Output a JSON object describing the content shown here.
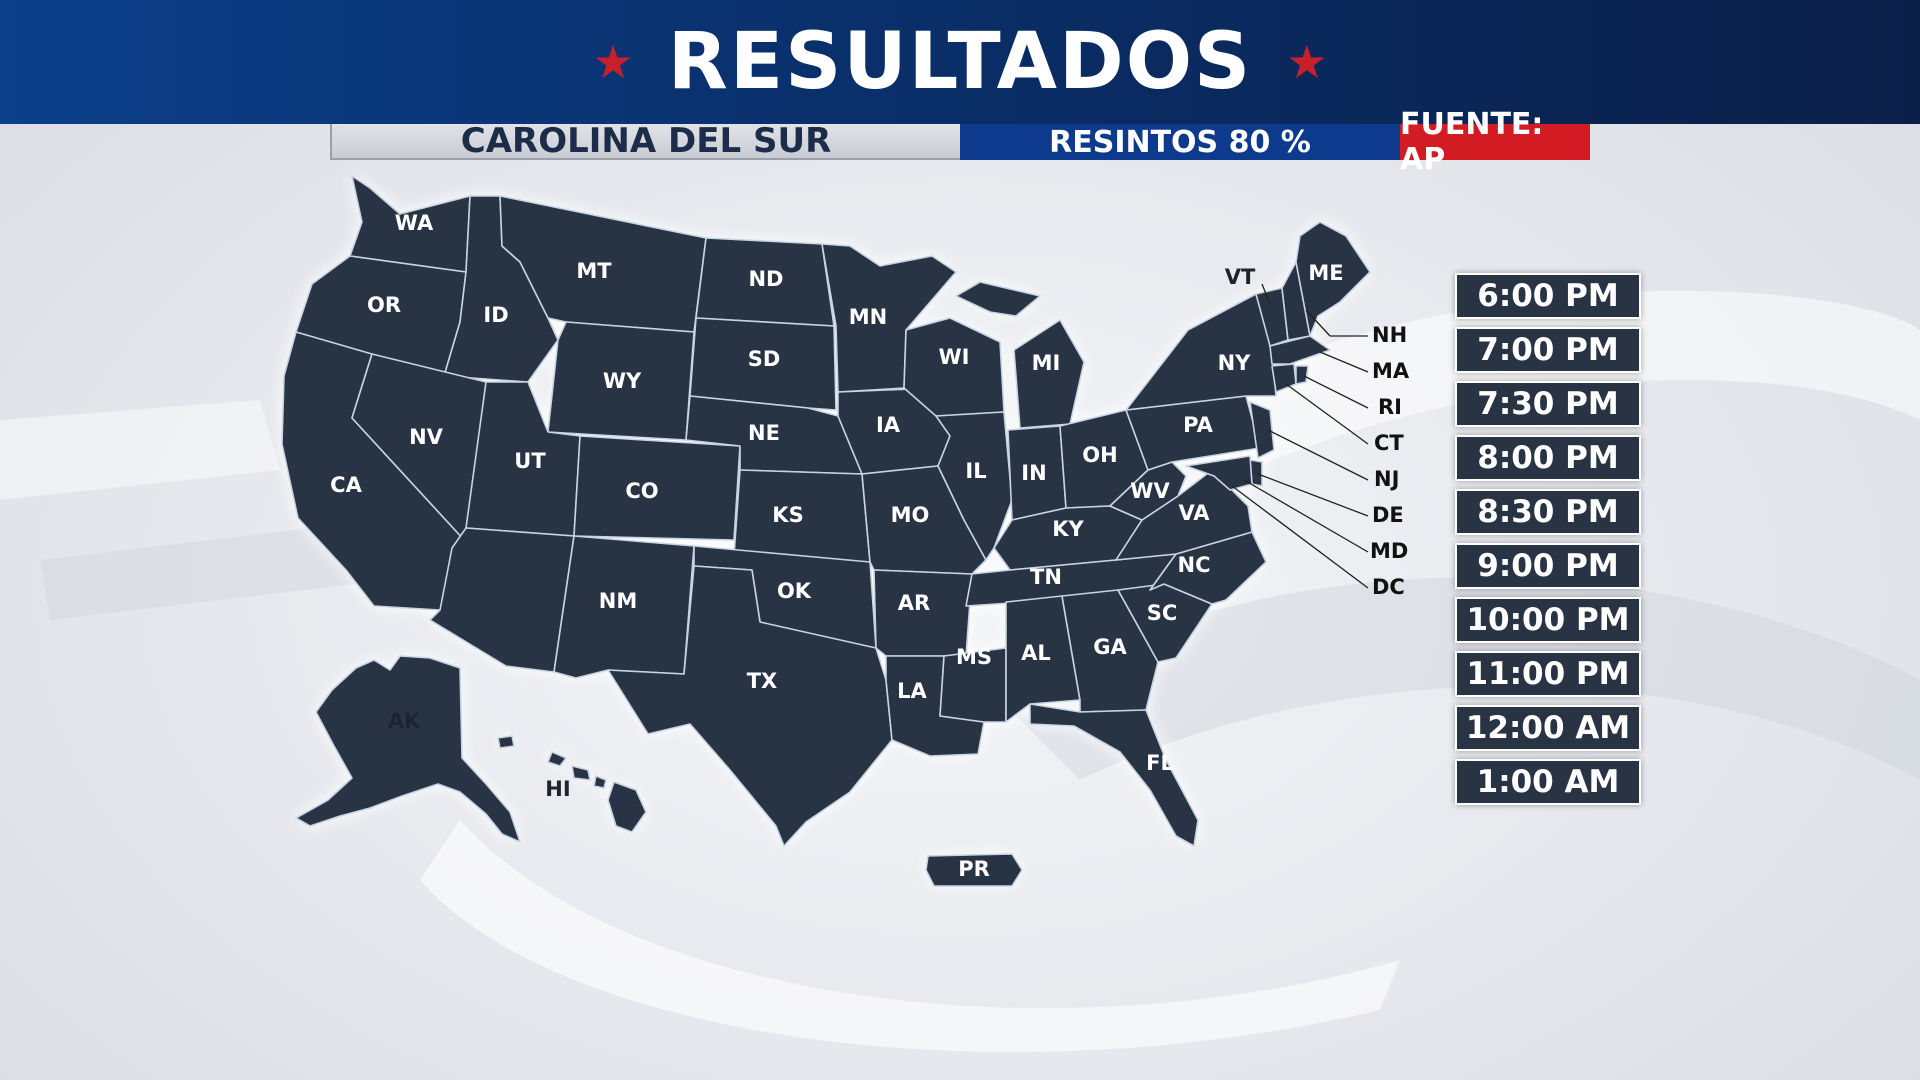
{
  "header": {
    "title": "RESULTADOS"
  },
  "info_bar": {
    "state_name": "CAROLINA DEL SUR",
    "precincts": "RESINTOS 80 %",
    "source": "FUENTE: AP"
  },
  "colors": {
    "state_fill": "#283344",
    "state_border": "#c7d4e3",
    "highlight_alaska": "#e3a92b",
    "highlight_arizona": "#808080",
    "header_bg": "#0a2f6a",
    "source_red": "#d31b24"
  },
  "map": {
    "states": {
      "WA": "WA",
      "OR": "OR",
      "CA": "CA",
      "ID": "ID",
      "NV": "NV",
      "MT": "MT",
      "WY": "WY",
      "UT": "UT",
      "AZ": "",
      "CO": "CO",
      "NM": "NM",
      "ND": "ND",
      "SD": "SD",
      "NE": "NE",
      "KS": "KS",
      "OK": "OK",
      "TX": "TX",
      "MN": "MN",
      "IA": "IA",
      "MO": "MO",
      "AR": "AR",
      "LA": "LA",
      "WI": "WI",
      "IL": "IL",
      "MS": "MS",
      "MI": "MI",
      "IN": "IN",
      "KY": "KY",
      "TN": "TN",
      "AL": "AL",
      "OH": "OH",
      "WV": "WV",
      "VA": "VA",
      "NC": "NC",
      "SC": "SC",
      "GA": "GA",
      "FL": "FL",
      "PA": "PA",
      "NY": "NY",
      "VT": "VT",
      "ME": "ME",
      "AK": "AK",
      "HI": "HI",
      "PR": "PR"
    },
    "small_states": [
      "NH",
      "MA",
      "RI",
      "CT",
      "NJ",
      "DE",
      "MD",
      "DC"
    ]
  },
  "time_slots": [
    "6:00 PM",
    "7:00 PM",
    "7:30 PM",
    "8:00 PM",
    "8:30 PM",
    "9:00 PM",
    "10:00 PM",
    "11:00 PM",
    "12:00 AM",
    "1:00 AM"
  ]
}
